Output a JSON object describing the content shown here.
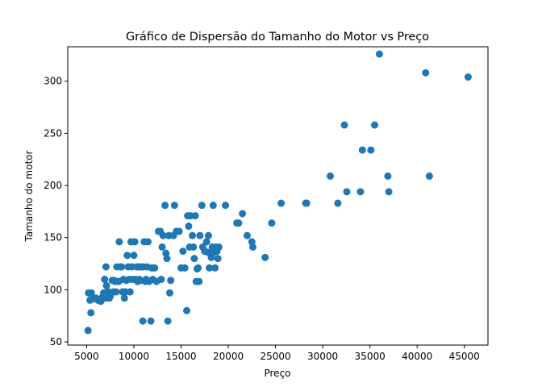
{
  "chart_data": {
    "type": "scatter",
    "title": "Gráfico de Dispersão do Tamanho do Motor vs Preço",
    "xlabel": "Preço",
    "ylabel": "Tamanho do motor",
    "xlim": [
      3000,
      47500
    ],
    "ylim": [
      47,
      333
    ],
    "xticks": [
      5000,
      10000,
      15000,
      20000,
      25000,
      30000,
      35000,
      40000,
      45000
    ],
    "yticks": [
      50,
      100,
      150,
      200,
      250,
      300
    ],
    "grid": false,
    "color": "#1f77b4",
    "points": [
      [
        5150,
        61
      ],
      [
        5200,
        97
      ],
      [
        5350,
        90
      ],
      [
        5450,
        78
      ],
      [
        5500,
        97
      ],
      [
        5600,
        91
      ],
      [
        5800,
        92
      ],
      [
        6000,
        92
      ],
      [
        6200,
        90
      ],
      [
        6400,
        91
      ],
      [
        6500,
        89
      ],
      [
        6700,
        93
      ],
      [
        6800,
        97
      ],
      [
        6900,
        110
      ],
      [
        7000,
        92
      ],
      [
        7050,
        122
      ],
      [
        7100,
        104
      ],
      [
        7200,
        98
      ],
      [
        7300,
        98
      ],
      [
        7400,
        92
      ],
      [
        7500,
        94
      ],
      [
        7600,
        97
      ],
      [
        7700,
        109
      ],
      [
        7800,
        98
      ],
      [
        7900,
        109
      ],
      [
        8000,
        108
      ],
      [
        8100,
        98
      ],
      [
        8200,
        122
      ],
      [
        8300,
        108
      ],
      [
        8400,
        108
      ],
      [
        8450,
        146
      ],
      [
        8600,
        122
      ],
      [
        8700,
        122
      ],
      [
        8800,
        98
      ],
      [
        8900,
        110
      ],
      [
        9000,
        92
      ],
      [
        9100,
        98
      ],
      [
        9200,
        109
      ],
      [
        9300,
        133
      ],
      [
        9400,
        122
      ],
      [
        9500,
        110
      ],
      [
        9600,
        98
      ],
      [
        9700,
        146
      ],
      [
        9800,
        122
      ],
      [
        9900,
        110
      ],
      [
        10000,
        133
      ],
      [
        10100,
        146
      ],
      [
        10200,
        110
      ],
      [
        10300,
        122
      ],
      [
        10400,
        108
      ],
      [
        10500,
        122
      ],
      [
        10600,
        110
      ],
      [
        10700,
        109
      ],
      [
        10800,
        122
      ],
      [
        10950,
        70
      ],
      [
        11000,
        122
      ],
      [
        11100,
        146
      ],
      [
        11200,
        108
      ],
      [
        11300,
        110
      ],
      [
        11400,
        122
      ],
      [
        11500,
        146
      ],
      [
        11600,
        108
      ],
      [
        11800,
        70
      ],
      [
        11900,
        121
      ],
      [
        12000,
        110
      ],
      [
        12200,
        121
      ],
      [
        12400,
        108
      ],
      [
        12600,
        156
      ],
      [
        12800,
        156
      ],
      [
        12900,
        110
      ],
      [
        13000,
        141
      ],
      [
        13100,
        152
      ],
      [
        13300,
        181
      ],
      [
        13400,
        135
      ],
      [
        13500,
        130
      ],
      [
        13600,
        70
      ],
      [
        13700,
        152
      ],
      [
        13800,
        97
      ],
      [
        13900,
        109
      ],
      [
        14200,
        152
      ],
      [
        14300,
        181
      ],
      [
        14500,
        156
      ],
      [
        14800,
        156
      ],
      [
        15000,
        121
      ],
      [
        15200,
        137
      ],
      [
        15400,
        121
      ],
      [
        15600,
        80
      ],
      [
        15700,
        171
      ],
      [
        15800,
        161
      ],
      [
        15900,
        141
      ],
      [
        16000,
        171
      ],
      [
        16200,
        152
      ],
      [
        16300,
        141
      ],
      [
        16400,
        130
      ],
      [
        16500,
        171
      ],
      [
        16600,
        108
      ],
      [
        16700,
        120
      ],
      [
        16800,
        121
      ],
      [
        16900,
        108
      ],
      [
        17000,
        152
      ],
      [
        17200,
        181
      ],
      [
        17300,
        141
      ],
      [
        17500,
        137
      ],
      [
        17700,
        146
      ],
      [
        17800,
        136
      ],
      [
        17900,
        152
      ],
      [
        18000,
        121
      ],
      [
        18100,
        136
      ],
      [
        18200,
        131
      ],
      [
        18300,
        141
      ],
      [
        18400,
        181
      ],
      [
        18500,
        136
      ],
      [
        18600,
        121
      ],
      [
        18700,
        141
      ],
      [
        18800,
        137
      ],
      [
        18900,
        130
      ],
      [
        19000,
        141
      ],
      [
        19700,
        181
      ],
      [
        20900,
        164
      ],
      [
        21100,
        164
      ],
      [
        21500,
        173
      ],
      [
        22000,
        152
      ],
      [
        22500,
        146
      ],
      [
        22600,
        141
      ],
      [
        23900,
        131
      ],
      [
        24600,
        164
      ],
      [
        25600,
        183
      ],
      [
        28200,
        183
      ],
      [
        28300,
        183
      ],
      [
        30800,
        209
      ],
      [
        31600,
        183
      ],
      [
        32300,
        258
      ],
      [
        32550,
        194
      ],
      [
        34000,
        194
      ],
      [
        34200,
        234
      ],
      [
        35100,
        234
      ],
      [
        35500,
        258
      ],
      [
        36000,
        326
      ],
      [
        36900,
        209
      ],
      [
        37000,
        194
      ],
      [
        40900,
        308
      ],
      [
        41300,
        209
      ],
      [
        45400,
        304
      ]
    ]
  }
}
